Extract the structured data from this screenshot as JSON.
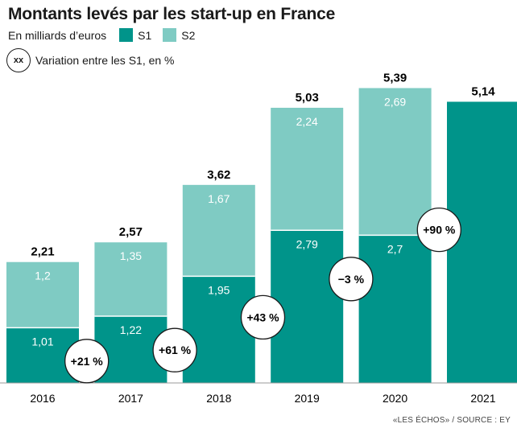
{
  "title": "Montants levés par les start-up en France",
  "legend": {
    "unit": "En milliards d’euros",
    "s1_label": "S1",
    "s2_label": "S2",
    "variation_symbol": "xx",
    "variation_label": "Variation entre les S1, en  %"
  },
  "colors": {
    "s1": "#00948a",
    "s2": "#7fcbc3",
    "circle_stroke": "#1a1a1a"
  },
  "source": "«LES ÉCHOS» / SOURCE : EY",
  "chart_data": {
    "type": "bar",
    "stacked": true,
    "categories": [
      "2016",
      "2017",
      "2018",
      "2019",
      "2020",
      "2021"
    ],
    "series": [
      {
        "name": "S1",
        "values": [
          1.01,
          1.22,
          1.95,
          2.79,
          2.7,
          5.14
        ],
        "labels": [
          "1,01",
          "1,22",
          "1,95",
          "2,79",
          "2,7",
          ""
        ]
      },
      {
        "name": "S2",
        "values": [
          1.2,
          1.35,
          1.67,
          2.24,
          2.69,
          null
        ],
        "labels": [
          "1,2",
          "1,35",
          "1,67",
          "2,24",
          "2,69",
          ""
        ]
      }
    ],
    "totals": [
      2.21,
      2.57,
      3.62,
      5.03,
      5.39,
      5.14
    ],
    "total_labels": [
      "2,21",
      "2,57",
      "3,62",
      "5,03",
      "5,39",
      "5,14"
    ],
    "variations": [
      {
        "between": [
          "2016",
          "2017"
        ],
        "label": "+21 %",
        "y": 0.4
      },
      {
        "between": [
          "2017",
          "2018"
        ],
        "label": "+61 %",
        "y": 0.6
      },
      {
        "between": [
          "2018",
          "2019"
        ],
        "label": "+43 %",
        "y": 1.2
      },
      {
        "between": [
          "2019",
          "2020"
        ],
        "label": "−3 %",
        "y": 1.9
      },
      {
        "between": [
          "2020",
          "2021"
        ],
        "label": "+90 %",
        "y": 2.8
      }
    ],
    "ylim": [
      0,
      5.5
    ]
  }
}
